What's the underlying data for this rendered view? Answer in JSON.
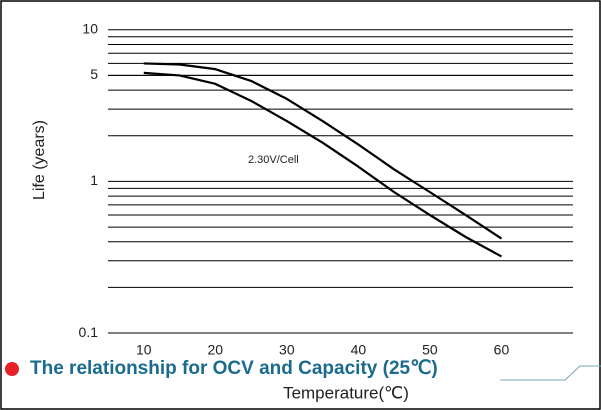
{
  "chart_data": {
    "type": "line",
    "title": "The relationship for OCV and Capacity (25℃)",
    "xlabel": "Temperature(℃)",
    "ylabel": "Life (years)",
    "annotation": "2.30V/Cell",
    "log_y": true,
    "grid": true,
    "x": [
      10,
      15,
      20,
      25,
      30,
      35,
      40,
      45,
      50,
      55,
      60
    ],
    "series": [
      {
        "name": null,
        "color": "#000000",
        "values": [
          6.0,
          5.9,
          5.5,
          4.6,
          3.5,
          2.5,
          1.75,
          1.2,
          0.85,
          0.6,
          0.42
        ]
      },
      {
        "name": null,
        "color": "#000000",
        "values": [
          5.2,
          5.0,
          4.4,
          3.4,
          2.5,
          1.8,
          1.25,
          0.85,
          0.6,
          0.43,
          0.32
        ]
      }
    ],
    "xlim": [
      5,
      70
    ],
    "xticks": [
      10,
      20,
      30,
      40,
      50,
      60
    ],
    "ylim": [
      0.09,
      11.6
    ],
    "yticks": [
      0.1,
      1,
      5,
      10
    ]
  }
}
